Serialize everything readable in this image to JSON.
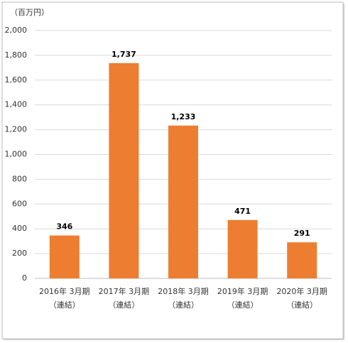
{
  "chart_data": {
    "type": "bar",
    "y_unit": "（百万円）",
    "categories": [
      [
        "2016年 3月期",
        "（連結）"
      ],
      [
        "2017年 3月期",
        "（連結）"
      ],
      [
        "2018年 3月期",
        "（連結）"
      ],
      [
        "2019年 3月期",
        "（連結）"
      ],
      [
        "2020年 3月期",
        "（連結）"
      ]
    ],
    "values": [
      346,
      1737,
      1233,
      471,
      291
    ],
    "value_labels": [
      "346",
      "1,737",
      "1,233",
      "471",
      "291"
    ],
    "color": "#ed7d31",
    "ylim": [
      0,
      2000
    ],
    "yticks": [
      0,
      200,
      400,
      600,
      800,
      {
        "value": 1000,
        "label": "1,000"
      },
      {
        "value": 1200,
        "label": "1,200"
      },
      {
        "value": 1400,
        "label": "1,400"
      },
      {
        "value": 1600,
        "label": "1,600"
      },
      {
        "value": 1800,
        "label": "1,800"
      },
      {
        "value": 2000,
        "label": "2,000"
      }
    ],
    "grid": true
  }
}
